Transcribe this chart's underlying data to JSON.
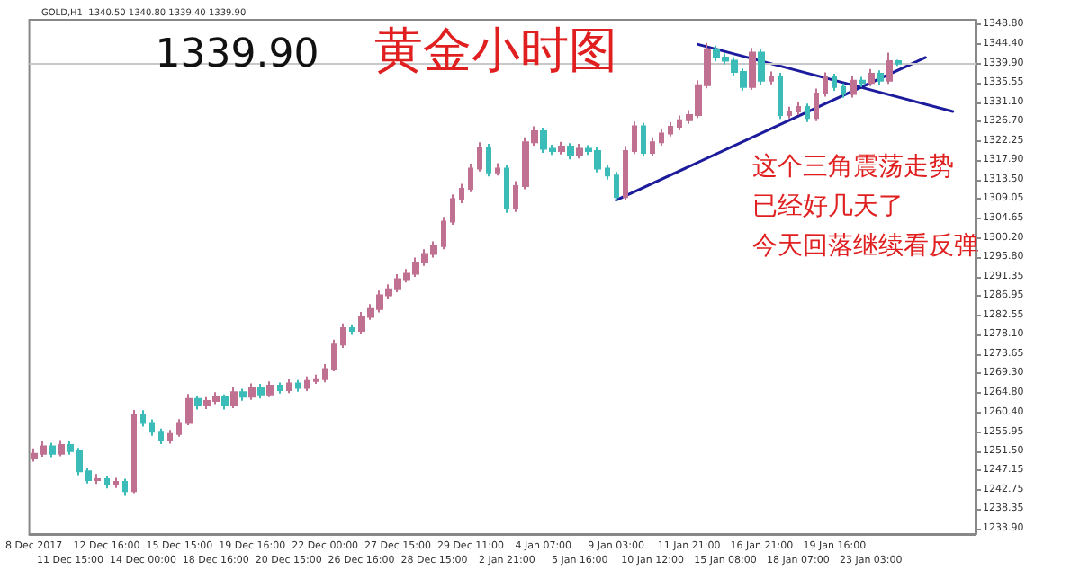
{
  "chart_data": {
    "type": "candlestick",
    "title": "黄金小时图",
    "subtitle": "GOLD,H1  1340.50 1340.80 1339.40 1339.90",
    "categories": [
      "8 Dec 2017",
      null,
      null,
      null,
      "11 Dec 15:00",
      null,
      null,
      null,
      "12 Dec 16:00",
      null,
      null,
      null,
      "14 Dec 00:00",
      null,
      null,
      null,
      "15 Dec 15:00",
      null,
      null,
      null,
      "18 Dec 16:00",
      null,
      null,
      null,
      "19 Dec 16:00",
      null,
      null,
      null,
      "20 Dec 15:00",
      null,
      null,
      null,
      "22 Dec 00:00",
      null,
      null,
      null,
      "26 Dec 16:00",
      null,
      null,
      null,
      "27 Dec 15:00",
      null,
      null,
      null,
      "28 Dec 15:00",
      null,
      null,
      null,
      "29 Dec 11:00",
      null,
      null,
      null,
      "2 Jan 21:00",
      null,
      null,
      null,
      "4 Jan 07:00",
      null,
      null,
      null,
      "5 Jan 16:00",
      null,
      null,
      null,
      "9 Jan 03:00",
      null,
      null,
      null,
      "10 Jan 12:00",
      null,
      null,
      null,
      "11 Jan 21:00",
      null,
      null,
      null,
      "15 Jan 08:00",
      null,
      null,
      null,
      "16 Jan 21:00",
      null,
      null,
      null,
      "18 Jan 07:00",
      null,
      null,
      null,
      "19 Jan 16:00",
      null,
      null,
      null,
      "23 Jan 03:00",
      null,
      null,
      null,
      null,
      null,
      null,
      null,
      null,
      null,
      null,
      null
    ],
    "ohlc": [
      [
        1250,
        1252.2,
        1249.2,
        1251
      ],
      [
        1251,
        1253.8,
        1250.3,
        1252.7
      ],
      [
        1252.7,
        1253.5,
        1250.2,
        1251
      ],
      [
        1251,
        1254.1,
        1250.4,
        1253
      ],
      [
        1253,
        1253.9,
        1250.8,
        1251.6
      ],
      [
        1251.6,
        1252.3,
        1246.1,
        1247
      ],
      [
        1247,
        1247.8,
        1244.2,
        1245
      ],
      [
        1245,
        1246.4,
        1244.1,
        1245.2
      ],
      [
        1245.2,
        1246,
        1243.1,
        1244
      ],
      [
        1244,
        1245.5,
        1243.2,
        1244.6
      ],
      [
        1244.6,
        1245.3,
        1241.4,
        1242.5
      ],
      [
        1242.5,
        1261,
        1242,
        1259.8
      ],
      [
        1259.8,
        1260.9,
        1257.2,
        1258
      ],
      [
        1258,
        1258.8,
        1255.1,
        1256
      ],
      [
        1256,
        1256.7,
        1253.2,
        1254
      ],
      [
        1254,
        1256.4,
        1253.3,
        1255.5
      ],
      [
        1255.5,
        1258.9,
        1254.9,
        1258
      ],
      [
        1258,
        1264.6,
        1257.5,
        1263.5
      ],
      [
        1263.5,
        1264.2,
        1261.1,
        1262
      ],
      [
        1262,
        1263.9,
        1261.2,
        1263
      ],
      [
        1263,
        1265,
        1262.3,
        1263.9
      ],
      [
        1263.9,
        1264.5,
        1261.1,
        1262
      ],
      [
        1262,
        1266.1,
        1261.4,
        1265
      ],
      [
        1265,
        1265.8,
        1263.1,
        1264
      ],
      [
        1264,
        1267,
        1263.3,
        1266
      ],
      [
        1266,
        1266.9,
        1263.6,
        1264.5
      ],
      [
        1264.5,
        1267.5,
        1263.9,
        1266.5
      ],
      [
        1266.5,
        1267.2,
        1264.7,
        1265.5
      ],
      [
        1265.5,
        1268.1,
        1264.8,
        1267
      ],
      [
        1267,
        1267.8,
        1265.1,
        1266
      ],
      [
        1266,
        1268.6,
        1265.3,
        1267.6
      ],
      [
        1267.6,
        1269,
        1266.9,
        1268
      ],
      [
        1268,
        1271.4,
        1267.3,
        1270.3
      ],
      [
        1270.3,
        1277,
        1269.8,
        1275.9
      ],
      [
        1275.9,
        1280.7,
        1275.1,
        1279.6
      ],
      [
        1279.6,
        1280.5,
        1278.1,
        1279
      ],
      [
        1279,
        1283.3,
        1278.4,
        1282.2
      ],
      [
        1282.2,
        1285.1,
        1281.5,
        1284
      ],
      [
        1284,
        1288.2,
        1283.2,
        1287.1
      ],
      [
        1287.1,
        1289.6,
        1286.2,
        1288.5
      ],
      [
        1288.5,
        1291.9,
        1287.8,
        1290.8
      ],
      [
        1290.8,
        1293.1,
        1290,
        1292
      ],
      [
        1292,
        1295.7,
        1291.3,
        1294.6
      ],
      [
        1294.6,
        1297.6,
        1293.8,
        1296.5
      ],
      [
        1296.5,
        1299.4,
        1295.7,
        1298.3
      ],
      [
        1298.3,
        1305,
        1297.6,
        1303.9
      ],
      [
        1303.9,
        1310.1,
        1303.2,
        1309
      ],
      [
        1309,
        1312.5,
        1308.1,
        1311.4
      ],
      [
        1311.4,
        1317.1,
        1310.6,
        1316
      ],
      [
        1316,
        1322,
        1315.3,
        1320.8
      ],
      [
        1320.8,
        1321.6,
        1314.2,
        1315.1
      ],
      [
        1315.1,
        1317.2,
        1314.4,
        1316
      ],
      [
        1316,
        1316.8,
        1305.9,
        1306.9
      ],
      [
        1306.9,
        1313.1,
        1306.1,
        1312
      ],
      [
        1312,
        1323.1,
        1311.3,
        1322
      ],
      [
        1322,
        1325.6,
        1321.2,
        1324.5
      ],
      [
        1324.5,
        1325.3,
        1319.6,
        1320.5
      ],
      [
        1320.5,
        1321.4,
        1319.1,
        1320
      ],
      [
        1320,
        1322.1,
        1319.2,
        1321
      ],
      [
        1321,
        1321.8,
        1318.1,
        1319
      ],
      [
        1319,
        1321.6,
        1318.3,
        1320.5
      ],
      [
        1320.5,
        1321.3,
        1319.1,
        1320
      ],
      [
        1320,
        1320.8,
        1315.1,
        1316
      ],
      [
        1316,
        1316.9,
        1313.5,
        1314.4
      ],
      [
        1314.4,
        1315.2,
        1308.6,
        1309.5
      ],
      [
        1309.5,
        1321.1,
        1308.9,
        1320
      ],
      [
        1320,
        1326.7,
        1319.3,
        1325.6
      ],
      [
        1325.6,
        1326.4,
        1318.7,
        1319.6
      ],
      [
        1319.6,
        1323.1,
        1318.9,
        1322
      ],
      [
        1322,
        1325.1,
        1321.2,
        1324
      ],
      [
        1324,
        1326.6,
        1323.3,
        1325.5
      ],
      [
        1325.5,
        1328.1,
        1324.7,
        1327
      ],
      [
        1327,
        1329.3,
        1326.2,
        1328.2
      ],
      [
        1328.2,
        1336.1,
        1327.5,
        1335
      ],
      [
        1335,
        1344.6,
        1334.3,
        1343.2
      ],
      [
        1343.2,
        1344,
        1340.4,
        1341.3
      ],
      [
        1341.3,
        1342.2,
        1339.7,
        1340.6
      ],
      [
        1340.6,
        1341.4,
        1337.1,
        1338
      ],
      [
        1338,
        1338.8,
        1333.7,
        1334.6
      ],
      [
        1334.6,
        1343.5,
        1333.9,
        1342.4
      ],
      [
        1342.4,
        1343.2,
        1335.1,
        1336
      ],
      [
        1336,
        1338.1,
        1335.2,
        1337
      ],
      [
        1337,
        1337.8,
        1327.3,
        1328.2
      ],
      [
        1328.2,
        1330.1,
        1327.4,
        1329
      ],
      [
        1329,
        1331.1,
        1328.2,
        1330
      ],
      [
        1330,
        1330.8,
        1326.6,
        1327.5
      ],
      [
        1327.5,
        1334.2,
        1326.8,
        1333.1
      ],
      [
        1333.1,
        1337.9,
        1332.4,
        1336.8
      ],
      [
        1336.8,
        1337.6,
        1333.7,
        1334.6
      ],
      [
        1334.6,
        1335.4,
        1332.1,
        1333
      ],
      [
        1333,
        1337.1,
        1332.2,
        1336
      ],
      [
        1336,
        1336.9,
        1334.6,
        1335.5
      ],
      [
        1335.5,
        1338.7,
        1334.8,
        1337.6
      ],
      [
        1337.6,
        1338.4,
        1335.1,
        1336
      ],
      [
        1336,
        1342.4,
        1335.3,
        1340.5
      ],
      [
        1340.5,
        1340.8,
        1339.4,
        1339.9
      ],
      null,
      null,
      null,
      null,
      null,
      null,
      null,
      null
    ],
    "colors": [
      "#c07090",
      "#c07090",
      "#3cbcb8",
      "#c07090",
      "#3cbcb8",
      "#3cbcb8",
      "#3cbcb8",
      "#c07090",
      "#3cbcb8",
      "#c07090",
      "#3cbcb8",
      "#c07090",
      "#3cbcb8",
      "#3cbcb8",
      "#3cbcb8",
      "#c07090",
      "#c07090",
      "#c07090",
      "#3cbcb8",
      "#c07090",
      "#c07090",
      "#3cbcb8",
      "#c07090",
      "#3cbcb8",
      "#c07090",
      "#3cbcb8",
      "#c07090",
      "#3cbcb8",
      "#c07090",
      "#3cbcb8",
      "#c07090",
      "#c07090",
      "#c07090",
      "#c07090",
      "#c07090",
      "#3cbcb8",
      "#c07090",
      "#c07090",
      "#c07090",
      "#c07090",
      "#c07090",
      "#c07090",
      "#c07090",
      "#c07090",
      "#c07090",
      "#c07090",
      "#c07090",
      "#c07090",
      "#c07090",
      "#c07090",
      "#3cbcb8",
      "#c07090",
      "#3cbcb8",
      "#c07090",
      "#c07090",
      "#c07090",
      "#3cbcb8",
      "#3cbcb8",
      "#c07090",
      "#3cbcb8",
      "#c07090",
      "#3cbcb8",
      "#3cbcb8",
      "#3cbcb8",
      "#3cbcb8",
      "#c07090",
      "#c07090",
      "#3cbcb8",
      "#c07090",
      "#c07090",
      "#c07090",
      "#c07090",
      "#c07090",
      "#c07090",
      "#c07090",
      "#3cbcb8",
      "#3cbcb8",
      "#3cbcb8",
      "#3cbcb8",
      "#c07090",
      "#3cbcb8",
      "#c07090",
      "#3cbcb8",
      "#c07090",
      "#c07090",
      "#3cbcb8",
      "#c07090",
      "#c07090",
      "#3cbcb8",
      "#3cbcb8",
      "#c07090",
      "#3cbcb8",
      "#c07090",
      "#3cbcb8",
      "#c07090",
      "#3cbcb8",
      null,
      null,
      null,
      null,
      null,
      null,
      null,
      null
    ],
    "ylim": [
      1232.7,
      1349.9
    ],
    "yticks": [
      {
        "value": 1348.8,
        "label": "1348.80"
      },
      {
        "value": 1344.4,
        "label": "1344.40"
      },
      {
        "value": 1339.9,
        "label": "1339.90"
      },
      {
        "value": 1335.55,
        "label": "1335.55"
      },
      {
        "value": 1331.1,
        "label": "1331.10"
      },
      {
        "value": 1326.7,
        "label": "1326.70"
      },
      {
        "value": 1322.25,
        "label": "1322.25"
      },
      {
        "value": 1317.9,
        "label": "1317.90"
      },
      {
        "value": 1313.5,
        "label": "1313.50"
      },
      {
        "value": 1309.05,
        "label": "1309.05"
      },
      {
        "value": 1304.65,
        "label": "1304.65"
      },
      {
        "value": 1300.2,
        "label": "1300.20"
      },
      {
        "value": 1295.8,
        "label": "1295.80"
      },
      {
        "value": 1291.35,
        "label": "1291.35"
      },
      {
        "value": 1286.95,
        "label": "1286.95"
      },
      {
        "value": 1282.55,
        "label": "1282.55"
      },
      {
        "value": 1278.1,
        "label": "1278.10"
      },
      {
        "value": 1273.65,
        "label": "1273.65"
      },
      {
        "value": 1269.3,
        "label": "1269.30"
      },
      {
        "value": 1264.8,
        "label": "1264.80"
      },
      {
        "value": 1260.4,
        "label": "1260.40"
      },
      {
        "value": 1255.95,
        "label": "1255.95"
      },
      {
        "value": 1251.5,
        "label": "1251.50"
      },
      {
        "value": 1247.15,
        "label": "1247.15"
      },
      {
        "value": 1242.75,
        "label": "1242.75"
      },
      {
        "value": 1238.35,
        "label": "1238.35"
      },
      {
        "value": 1233.9,
        "label": "1233.90"
      }
    ],
    "ref_lines": [
      {
        "axis": "y",
        "value": 1339.9,
        "label": "1339.90",
        "color": "#c8c8c8"
      }
    ],
    "annotations": [
      "这个三角震荡走势",
      "已经好几天了",
      "今天回落继续看反弹"
    ],
    "series": [
      {
        "type": "line",
        "color": "#1c1c9c",
        "values": [
          null,
          null,
          null,
          null,
          null,
          null,
          null,
          null,
          null,
          null,
          null,
          null,
          null,
          null,
          null,
          null,
          null,
          null,
          null,
          null,
          null,
          null,
          null,
          null,
          null,
          null,
          null,
          null,
          null,
          null,
          null,
          null,
          null,
          null,
          null,
          null,
          null,
          null,
          null,
          null,
          null,
          null,
          null,
          null,
          null,
          null,
          null,
          null,
          null,
          null,
          null,
          null,
          null,
          null,
          null,
          null,
          null,
          null,
          null,
          null,
          null,
          null,
          null,
          null,
          1308.8,
          null,
          null,
          null,
          null,
          null,
          null,
          null,
          null,
          null,
          null,
          null,
          null,
          null,
          null,
          null,
          null,
          null,
          null,
          null,
          null,
          null,
          null,
          null,
          null,
          null,
          null,
          null,
          null,
          null,
          null,
          null,
          null,
          null,
          1341.3,
          null,
          null,
          null,
          null,
          null
        ]
      },
      {
        "type": "line",
        "color": "#1c1c9c",
        "values": [
          null,
          null,
          null,
          null,
          null,
          null,
          null,
          null,
          null,
          null,
          null,
          null,
          null,
          null,
          null,
          null,
          null,
          null,
          null,
          null,
          null,
          null,
          null,
          null,
          null,
          null,
          null,
          null,
          null,
          null,
          null,
          null,
          null,
          null,
          null,
          null,
          null,
          null,
          null,
          null,
          null,
          null,
          null,
          null,
          null,
          null,
          null,
          null,
          null,
          null,
          null,
          null,
          null,
          null,
          null,
          null,
          null,
          null,
          null,
          null,
          null,
          null,
          null,
          null,
          null,
          null,
          null,
          null,
          null,
          null,
          null,
          null,
          null,
          1344.3,
          null,
          null,
          null,
          null,
          null,
          null,
          null,
          null,
          null,
          null,
          null,
          null,
          null,
          null,
          null,
          null,
          null,
          null,
          null,
          null,
          null,
          null,
          null,
          null,
          null,
          null,
          null,
          1329,
          null,
          null
        ]
      }
    ]
  }
}
